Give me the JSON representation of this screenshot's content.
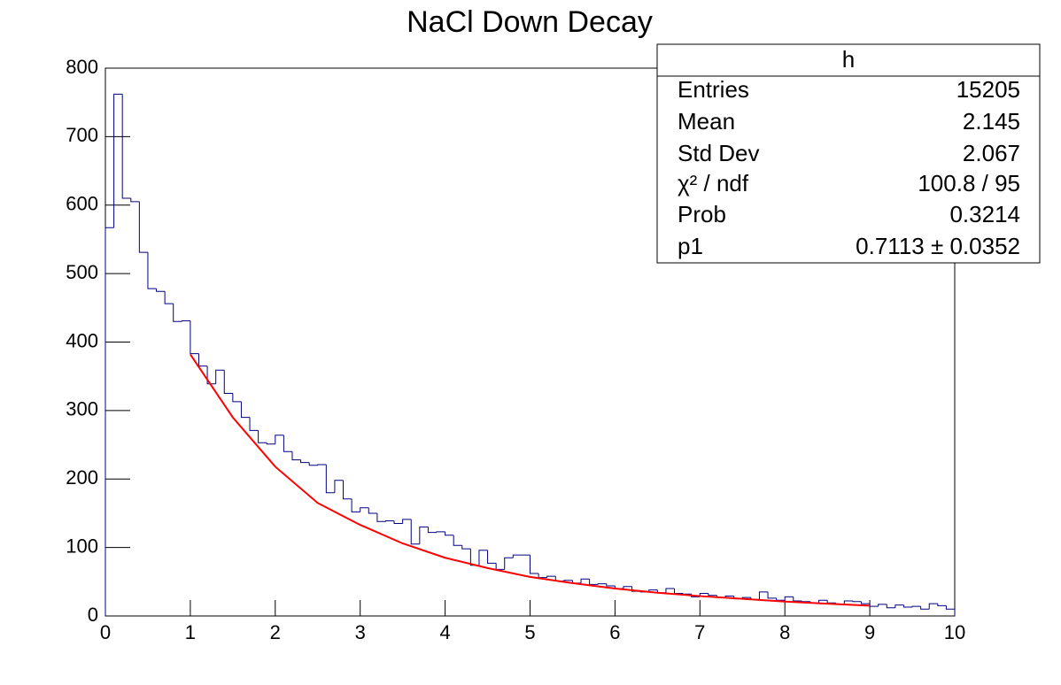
{
  "chart_data": {
    "type": "histogram",
    "title": "NaCl Down Decay",
    "bins": [
      0,
      0.1,
      0.2,
      0.3,
      0.4,
      0.5,
      0.6,
      0.7,
      0.8,
      0.9,
      1,
      1.1,
      1.2,
      1.3,
      1.4,
      1.5,
      1.6,
      1.7,
      1.8,
      1.9,
      2,
      2.1,
      2.2,
      2.3,
      2.4,
      2.5,
      2.6,
      2.7,
      2.8,
      2.9,
      3,
      3.1,
      3.2,
      3.3,
      3.4,
      3.5,
      3.6,
      3.7,
      3.8,
      3.9,
      4,
      4.1,
      4.2,
      4.3,
      4.4,
      4.5,
      4.6,
      4.7,
      4.8,
      4.9,
      5,
      5.1,
      5.2,
      5.3,
      5.4,
      5.5,
      5.6,
      5.7,
      5.8,
      5.9,
      6,
      6.1,
      6.2,
      6.3,
      6.4,
      6.5,
      6.6,
      6.7,
      6.8,
      6.9,
      7,
      7.1,
      7.2,
      7.3,
      7.4,
      7.5,
      7.6,
      7.7,
      7.8,
      7.9,
      8,
      8.1,
      8.2,
      8.3,
      8.4,
      8.5,
      8.6,
      8.7,
      8.8,
      8.9,
      9,
      9.1,
      9.2,
      9.3,
      9.4,
      9.5,
      9.6,
      9.7,
      9.8,
      9.9,
      10
    ],
    "values": [
      567,
      762,
      610,
      605,
      531,
      478,
      474,
      456,
      430,
      431,
      383,
      365,
      339,
      359,
      325,
      313,
      290,
      271,
      253,
      251,
      264,
      240,
      228,
      224,
      220,
      221,
      180,
      198,
      171,
      152,
      158,
      150,
      138,
      139,
      135,
      141,
      105,
      130,
      122,
      123,
      118,
      103,
      98,
      74,
      96,
      77,
      68,
      85,
      89,
      89,
      62,
      56,
      58,
      51,
      52,
      48,
      54,
      46,
      47,
      44,
      40,
      43,
      36,
      35,
      38,
      34,
      40,
      33,
      32,
      28,
      33,
      30,
      27,
      29,
      25,
      27,
      24,
      35,
      26,
      23,
      28,
      22,
      21,
      19,
      23,
      19,
      17,
      22,
      21,
      18,
      14,
      17,
      12,
      16,
      13,
      14,
      10,
      18,
      15,
      10
    ],
    "color": "#000080",
    "fit": {
      "color": "#ff0000",
      "x": [
        1,
        1.5,
        2,
        2.5,
        3,
        3.5,
        4,
        4.5,
        5,
        5.5,
        6,
        6.5,
        7,
        7.5,
        8,
        8.5,
        9
      ],
      "values": [
        382,
        290,
        218,
        165,
        133,
        106,
        85,
        70,
        57,
        48,
        40,
        34,
        29,
        25,
        21,
        18,
        15
      ]
    },
    "xlim": [
      0,
      10
    ],
    "xticks": [
      0,
      1,
      2,
      3,
      4,
      5,
      6,
      7,
      8,
      9,
      10
    ],
    "ylim": [
      0,
      800
    ],
    "yticks": [
      0,
      100,
      200,
      300,
      400,
      500,
      600,
      700,
      800
    ],
    "stats": {
      "title": "h",
      "rows": [
        [
          "Entries",
          "15205"
        ],
        [
          "Mean",
          "2.145"
        ],
        [
          "Std Dev",
          "2.067"
        ],
        [
          "χ² / ndf",
          "100.8 / 95"
        ],
        [
          "Prob",
          "0.3214"
        ],
        [
          "p1",
          "0.7113 ± 0.0352"
        ]
      ]
    }
  }
}
